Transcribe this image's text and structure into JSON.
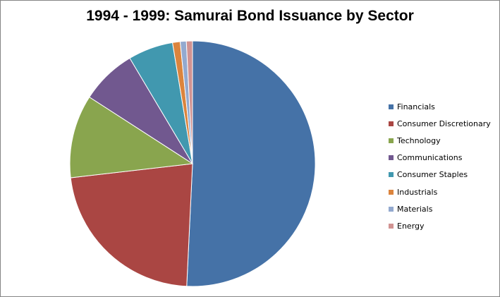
{
  "chart_data": {
    "type": "pie",
    "title": "1994 - 1999: Samurai Bond Issuance by Sector",
    "legend_position": "right",
    "slices": [
      {
        "label": "Financials",
        "value": 50.5,
        "color": "#4572A7"
      },
      {
        "label": "Consumer Discretionary",
        "value": 22.3,
        "color": "#AA4643"
      },
      {
        "label": "Technology",
        "value": 10.9,
        "color": "#89A54E"
      },
      {
        "label": "Communications",
        "value": 7.3,
        "color": "#71588F"
      },
      {
        "label": "Consumer Staples",
        "value": 5.9,
        "color": "#4198AF"
      },
      {
        "label": "Industrials",
        "value": 1.0,
        "color": "#DB843D"
      },
      {
        "label": "Materials",
        "value": 0.8,
        "color": "#93A9CF"
      },
      {
        "label": "Energy",
        "value": 0.8,
        "color": "#D19392"
      }
    ]
  }
}
